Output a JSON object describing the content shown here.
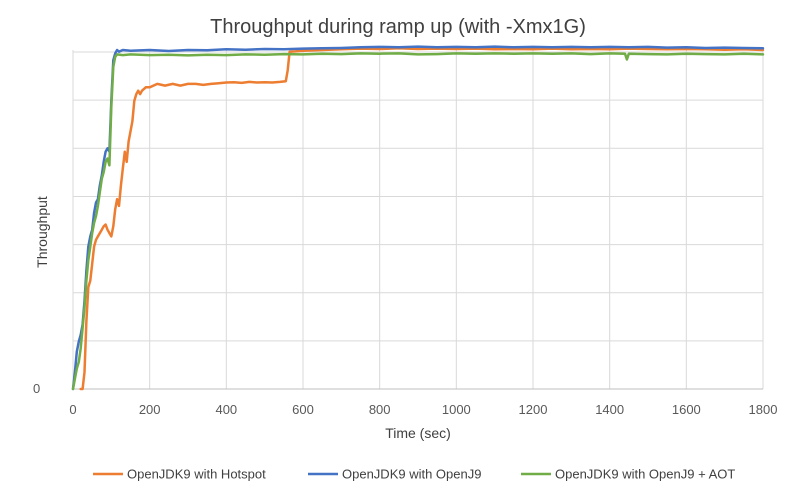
{
  "chart_data": {
    "type": "line",
    "title": "Throughput during ramp up (with -Xmx1G)",
    "xlabel": "Time (sec)",
    "ylabel": "Throughput",
    "xlim": [
      0,
      1800
    ],
    "ylim": [
      0,
      100
    ],
    "x_ticks": [
      "0",
      "200",
      "400",
      "600",
      "800",
      "1000",
      "1200",
      "1400",
      "1600",
      "1800"
    ],
    "y_tick_labels": [
      "0"
    ],
    "y_gridline_values": [
      0,
      14.2,
      28.4,
      42.6,
      56.8,
      71.0,
      85.2,
      99.4
    ],
    "grid": true,
    "legend_position": "bottom",
    "series": [
      {
        "name": "OpenJDK9 with Hotspot",
        "color": "#ED7D31",
        "points": [
          [
            20,
            0
          ],
          [
            25,
            0
          ],
          [
            30,
            5
          ],
          [
            35,
            20
          ],
          [
            40,
            30
          ],
          [
            45,
            32
          ],
          [
            50,
            37
          ],
          [
            55,
            42
          ],
          [
            60,
            44
          ],
          [
            65,
            45
          ],
          [
            70,
            46
          ],
          [
            75,
            47
          ],
          [
            80,
            48
          ],
          [
            85,
            48.5
          ],
          [
            90,
            47
          ],
          [
            95,
            46
          ],
          [
            100,
            45
          ],
          [
            105,
            48
          ],
          [
            110,
            53
          ],
          [
            115,
            56
          ],
          [
            120,
            54
          ],
          [
            125,
            60
          ],
          [
            130,
            65
          ],
          [
            135,
            70
          ],
          [
            140,
            67
          ],
          [
            145,
            73
          ],
          [
            150,
            76
          ],
          [
            155,
            79
          ],
          [
            160,
            85
          ],
          [
            165,
            87
          ],
          [
            170,
            88
          ],
          [
            175,
            87
          ],
          [
            180,
            88
          ],
          [
            190,
            89
          ],
          [
            200,
            89
          ],
          [
            220,
            90
          ],
          [
            240,
            89.5
          ],
          [
            260,
            90
          ],
          [
            280,
            89.5
          ],
          [
            300,
            90
          ],
          [
            320,
            90
          ],
          [
            340,
            89.7
          ],
          [
            360,
            90
          ],
          [
            380,
            90.2
          ],
          [
            400,
            90.4
          ],
          [
            420,
            90.5
          ],
          [
            440,
            90.3
          ],
          [
            460,
            90.6
          ],
          [
            480,
            90.4
          ],
          [
            500,
            90.5
          ],
          [
            520,
            90.4
          ],
          [
            540,
            90.6
          ],
          [
            555,
            90.8
          ],
          [
            560,
            94
          ],
          [
            565,
            99.5
          ],
          [
            580,
            99.6
          ],
          [
            600,
            99.8
          ],
          [
            650,
            100
          ],
          [
            700,
            100.2
          ],
          [
            750,
            100.4
          ],
          [
            800,
            100.3
          ],
          [
            850,
            100.5
          ],
          [
            900,
            100.3
          ],
          [
            950,
            100.4
          ],
          [
            1000,
            100.3
          ],
          [
            1050,
            100.4
          ],
          [
            1100,
            100.2
          ],
          [
            1150,
            100.3
          ],
          [
            1200,
            100.2
          ],
          [
            1250,
            100.4
          ],
          [
            1300,
            100.2
          ],
          [
            1350,
            100.3
          ],
          [
            1400,
            100.2
          ],
          [
            1450,
            100.4
          ],
          [
            1500,
            100.3
          ],
          [
            1550,
            100.2
          ],
          [
            1600,
            100.3
          ],
          [
            1650,
            100.2
          ],
          [
            1700,
            100.1
          ],
          [
            1750,
            100.2
          ],
          [
            1800,
            100
          ]
        ]
      },
      {
        "name": "OpenJDK9 with OpenJ9",
        "color": "#4472C4",
        "points": [
          [
            0,
            0
          ],
          [
            5,
            5
          ],
          [
            10,
            11
          ],
          [
            15,
            14
          ],
          [
            20,
            16
          ],
          [
            25,
            19
          ],
          [
            30,
            26
          ],
          [
            35,
            35
          ],
          [
            40,
            42
          ],
          [
            45,
            45
          ],
          [
            50,
            47
          ],
          [
            55,
            52
          ],
          [
            60,
            55
          ],
          [
            65,
            56
          ],
          [
            70,
            60
          ],
          [
            75,
            63
          ],
          [
            80,
            67
          ],
          [
            85,
            70
          ],
          [
            90,
            71
          ],
          [
            95,
            70
          ],
          [
            100,
            85
          ],
          [
            105,
            97
          ],
          [
            110,
            99
          ],
          [
            115,
            100
          ],
          [
            120,
            99.5
          ],
          [
            130,
            100
          ],
          [
            150,
            99.8
          ],
          [
            200,
            100
          ],
          [
            250,
            99.7
          ],
          [
            300,
            100
          ],
          [
            350,
            99.9
          ],
          [
            400,
            100.2
          ],
          [
            450,
            100.1
          ],
          [
            500,
            100.3
          ],
          [
            550,
            100.2
          ],
          [
            600,
            100.4
          ],
          [
            650,
            100.5
          ],
          [
            700,
            100.6
          ],
          [
            750,
            100.8
          ],
          [
            800,
            100.9
          ],
          [
            850,
            100.8
          ],
          [
            900,
            101
          ],
          [
            950,
            100.8
          ],
          [
            1000,
            100.9
          ],
          [
            1050,
            100.8
          ],
          [
            1100,
            101
          ],
          [
            1150,
            100.8
          ],
          [
            1200,
            100.9
          ],
          [
            1250,
            100.8
          ],
          [
            1300,
            100.9
          ],
          [
            1350,
            100.8
          ],
          [
            1400,
            100.9
          ],
          [
            1450,
            100.8
          ],
          [
            1500,
            100.9
          ],
          [
            1550,
            100.7
          ],
          [
            1600,
            100.8
          ],
          [
            1650,
            100.6
          ],
          [
            1700,
            100.7
          ],
          [
            1750,
            100.6
          ],
          [
            1800,
            100.5
          ]
        ]
      },
      {
        "name": "OpenJDK9 with OpenJ9 + AOT",
        "color": "#70AD47",
        "points": [
          [
            0,
            0
          ],
          [
            5,
            3
          ],
          [
            10,
            6
          ],
          [
            15,
            8
          ],
          [
            20,
            12
          ],
          [
            25,
            18
          ],
          [
            30,
            24
          ],
          [
            35,
            32
          ],
          [
            40,
            38
          ],
          [
            45,
            42
          ],
          [
            50,
            46
          ],
          [
            55,
            49
          ],
          [
            60,
            51
          ],
          [
            65,
            54
          ],
          [
            70,
            58
          ],
          [
            75,
            62
          ],
          [
            80,
            64
          ],
          [
            85,
            67
          ],
          [
            90,
            68
          ],
          [
            95,
            66
          ],
          [
            100,
            83
          ],
          [
            105,
            95
          ],
          [
            110,
            98
          ],
          [
            115,
            98.7
          ],
          [
            130,
            98.5
          ],
          [
            150,
            98.7
          ],
          [
            200,
            98.5
          ],
          [
            250,
            98.6
          ],
          [
            300,
            98.4
          ],
          [
            350,
            98.6
          ],
          [
            400,
            98.5
          ],
          [
            450,
            98.7
          ],
          [
            500,
            98.6
          ],
          [
            550,
            98.8
          ],
          [
            600,
            98.7
          ],
          [
            650,
            98.9
          ],
          [
            700,
            98.8
          ],
          [
            750,
            99
          ],
          [
            800,
            98.9
          ],
          [
            850,
            99
          ],
          [
            900,
            98.7
          ],
          [
            950,
            98.8
          ],
          [
            1000,
            99
          ],
          [
            1050,
            98.9
          ],
          [
            1100,
            99
          ],
          [
            1150,
            98.9
          ],
          [
            1200,
            99
          ],
          [
            1250,
            98.9
          ],
          [
            1300,
            99
          ],
          [
            1350,
            98.8
          ],
          [
            1400,
            99
          ],
          [
            1440,
            98.9
          ],
          [
            1445,
            97.2
          ],
          [
            1450,
            98.9
          ],
          [
            1500,
            98.8
          ],
          [
            1550,
            98.7
          ],
          [
            1600,
            98.9
          ],
          [
            1650,
            98.8
          ],
          [
            1700,
            98.7
          ],
          [
            1750,
            98.9
          ],
          [
            1800,
            98.7
          ]
        ]
      }
    ]
  }
}
